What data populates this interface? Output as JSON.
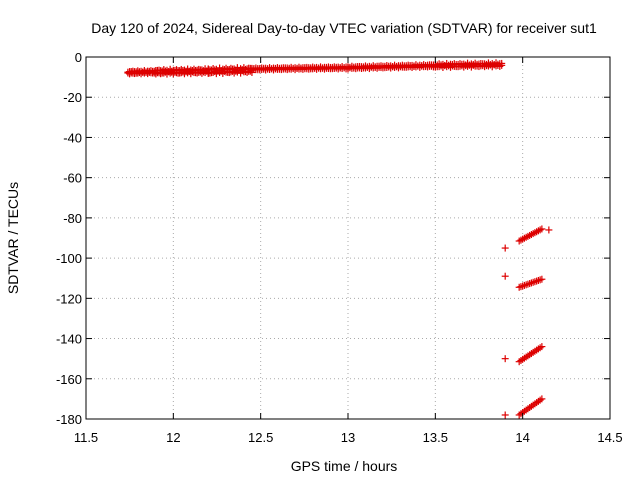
{
  "chart_data": {
    "type": "scatter",
    "title": "Day 120 of 2024, Sidereal Day-to-day VTEC variation (SDTVAR) for receiver sut1",
    "xlabel": "GPS time / hours",
    "ylabel": "SDTVAR / TECUs",
    "xlim": [
      11.5,
      14.5
    ],
    "ylim": [
      -180,
      0
    ],
    "xticks": [
      11.5,
      12,
      12.5,
      13,
      13.5,
      14,
      14.5
    ],
    "yticks": [
      0,
      -20,
      -40,
      -60,
      -80,
      -100,
      -120,
      -140,
      -160,
      -180
    ],
    "xtick_labels": [
      "11.5",
      "12",
      "12.5",
      "13",
      "13.5",
      "14",
      "14.5"
    ],
    "ytick_labels": [
      "0",
      "-20",
      "-40",
      "-60",
      "-80",
      "-100",
      "-120",
      "-140",
      "-160",
      "-180"
    ],
    "grid": true,
    "marker": "plus",
    "marker_color": "#dd0000",
    "series": [
      {
        "segments": [
          {
            "x_start": 11.74,
            "x_end": 11.9,
            "y_start": -7.7,
            "y_end": -7.4,
            "count": 18,
            "jitter": 0.8
          },
          {
            "x_start": 11.9,
            "x_end": 12.2,
            "y_start": -7.4,
            "y_end": -7.0,
            "count": 34,
            "jitter": 1.2
          },
          {
            "x_start": 12.2,
            "x_end": 12.45,
            "y_start": -7.0,
            "y_end": -6.5,
            "count": 28,
            "jitter": 1.4
          },
          {
            "x_start": 12.45,
            "x_end": 13.0,
            "y_start": -6.0,
            "y_end": -5.3,
            "count": 50,
            "jitter": 0.6
          },
          {
            "x_start": 13.0,
            "x_end": 13.5,
            "y_start": -5.3,
            "y_end": -4.3,
            "count": 46,
            "jitter": 0.7
          },
          {
            "x_start": 13.5,
            "x_end": 13.88,
            "y_start": -4.3,
            "y_end": -3.8,
            "count": 36,
            "jitter": 1.0
          },
          {
            "x_start": 13.9,
            "x_end": 13.9,
            "y_start": -95.0,
            "y_end": -95.0,
            "count": 1,
            "jitter": 0
          },
          {
            "x_start": 13.98,
            "x_end": 14.11,
            "y_start": -91.5,
            "y_end": -85.5,
            "count": 14,
            "jitter": 0
          },
          {
            "x_start": 14.15,
            "x_end": 14.15,
            "y_start": -86.0,
            "y_end": -86.0,
            "count": 1,
            "jitter": 0
          },
          {
            "x_start": 13.9,
            "x_end": 13.9,
            "y_start": -109.0,
            "y_end": -109.0,
            "count": 1,
            "jitter": 0
          },
          {
            "x_start": 13.98,
            "x_end": 14.11,
            "y_start": -114.5,
            "y_end": -110.5,
            "count": 14,
            "jitter": 0
          },
          {
            "x_start": 13.9,
            "x_end": 13.9,
            "y_start": -150.0,
            "y_end": -150.0,
            "count": 1,
            "jitter": 0
          },
          {
            "x_start": 13.98,
            "x_end": 14.11,
            "y_start": -151.5,
            "y_end": -144.0,
            "count": 14,
            "jitter": 0
          },
          {
            "x_start": 13.9,
            "x_end": 13.9,
            "y_start": -178.0,
            "y_end": -178.0,
            "count": 1,
            "jitter": 0
          },
          {
            "x_start": 13.98,
            "x_end": 14.11,
            "y_start": -178.0,
            "y_end": -170.0,
            "count": 14,
            "jitter": 0
          }
        ]
      }
    ]
  }
}
